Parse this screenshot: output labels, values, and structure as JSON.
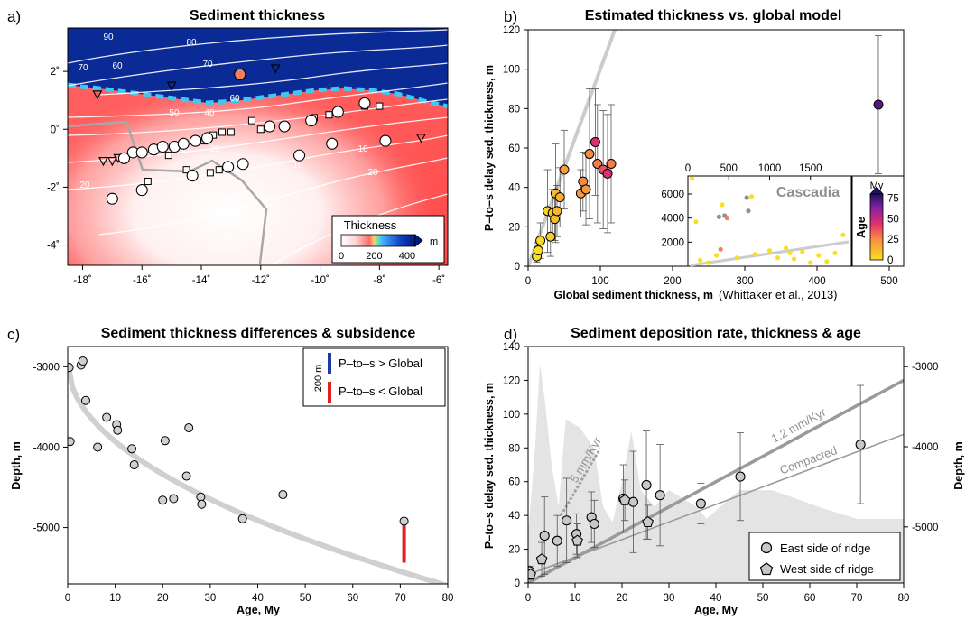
{
  "chart_data": [
    {
      "id": "a",
      "panel_label": "a)",
      "type": "heatmap",
      "title": "Sediment thickness",
      "x_ticks": [
        "-18˚",
        "-16˚",
        "-14˚",
        "-12˚",
        "-10˚",
        "-8˚",
        "-6˚"
      ],
      "y_ticks": [
        "2˚",
        "0˚",
        "-2˚",
        "-4˚"
      ],
      "xlim": [
        -18.5,
        -5.7
      ],
      "ylim": [
        -4.7,
        3.5
      ],
      "colorbar": {
        "label": "Thickness",
        "unit": "m",
        "ticks": [
          "0",
          "200",
          "400"
        ],
        "range": [
          0,
          450
        ]
      },
      "contour_labels": [
        "90",
        "80",
        "70",
        "60",
        "70",
        "50",
        "60",
        "40",
        "30",
        "20",
        "10",
        "20",
        "10",
        "20"
      ],
      "stations_circle": [
        {
          "lon": -17.0,
          "lat": -2.4
        },
        {
          "lon": -16.0,
          "lat": -2.1
        },
        {
          "lon": -16.6,
          "lat": -1.0
        },
        {
          "lon": -16.3,
          "lat": -0.8
        },
        {
          "lon": -16.0,
          "lat": -0.8
        },
        {
          "lon": -15.6,
          "lat": -0.7
        },
        {
          "lon": -15.3,
          "lat": -0.6
        },
        {
          "lon": -14.9,
          "lat": -0.6
        },
        {
          "lon": -14.6,
          "lat": -0.5
        },
        {
          "lon": -14.2,
          "lat": -0.4
        },
        {
          "lon": -13.8,
          "lat": -0.3
        },
        {
          "lon": -14.3,
          "lat": -1.6
        },
        {
          "lon": -13.1,
          "lat": -1.3
        },
        {
          "lon": -12.6,
          "lat": -1.2
        },
        {
          "lon": -11.7,
          "lat": 0.1
        },
        {
          "lon": -11.2,
          "lat": 0.1
        },
        {
          "lon": -10.3,
          "lat": 0.3
        },
        {
          "lon": -9.4,
          "lat": 0.6
        },
        {
          "lon": -8.5,
          "lat": 0.9
        },
        {
          "lon": -10.7,
          "lat": -0.9
        },
        {
          "lon": -9.6,
          "lat": -0.5
        },
        {
          "lon": -7.8,
          "lat": -0.4
        }
      ],
      "station_colored": {
        "lon": -12.7,
        "lat": 1.9,
        "color": "#f08060"
      },
      "stations_square": [
        {
          "lon": -15.8,
          "lat": -1.8
        },
        {
          "lon": -15.1,
          "lat": -0.9
        },
        {
          "lon": -14.5,
          "lat": -1.4
        },
        {
          "lon": -13.7,
          "lat": -1.5
        },
        {
          "lon": -13.4,
          "lat": -1.4
        },
        {
          "lon": -13.9,
          "lat": -0.4
        },
        {
          "lon": -13.6,
          "lat": -0.2
        },
        {
          "lon": -13.3,
          "lat": -0.1
        },
        {
          "lon": -13.0,
          "lat": -0.1
        },
        {
          "lon": -12.0,
          "lat": 0.0
        },
        {
          "lon": -10.2,
          "lat": 0.4
        },
        {
          "lon": -9.7,
          "lat": 0.5
        },
        {
          "lon": -8.5,
          "lat": 0.8
        },
        {
          "lon": -8.0,
          "lat": 0.8
        },
        {
          "lon": -12.3,
          "lat": 0.3
        }
      ],
      "stations_triangle": [
        {
          "lon": -17.5,
          "lat": 1.2
        },
        {
          "lon": -15.0,
          "lat": 1.5
        },
        {
          "lon": -11.5,
          "lat": 2.1
        },
        {
          "lon": -6.6,
          "lat": -0.3
        },
        {
          "lon": -17.3,
          "lat": -1.1
        },
        {
          "lon": -17.0,
          "lat": -1.1
        },
        {
          "lon": -16.8,
          "lat": -1.0
        }
      ]
    },
    {
      "id": "b",
      "panel_label": "b)",
      "type": "scatter",
      "title": "Estimated thickness vs. global model",
      "xlabel": "Global sediment thickness, m",
      "xlabel_note": "(Whittaker et al., 2013)",
      "ylabel": "P–to–s delay sed. thickness, m",
      "xlim": [
        0,
        520
      ],
      "ylim": [
        0,
        120
      ],
      "x_ticks": [
        0,
        100,
        200,
        300,
        400,
        500
      ],
      "y_ticks": [
        0,
        20,
        40,
        60,
        80,
        100,
        120
      ],
      "one_to_one_line": true,
      "points": [
        {
          "x": 12,
          "y": 5,
          "err": 3,
          "age": 0.5
        },
        {
          "x": 14,
          "y": 8,
          "err": 4,
          "age": 1
        },
        {
          "x": 17,
          "y": 13,
          "err": 9,
          "age": 2
        },
        {
          "x": 27,
          "y": 28,
          "err": 21,
          "age": 3.5
        },
        {
          "x": 31,
          "y": 15,
          "err": 10,
          "age": 6
        },
        {
          "x": 34,
          "y": 27,
          "err": 12,
          "age": 8
        },
        {
          "x": 37,
          "y": 24,
          "err": 11,
          "age": 10
        },
        {
          "x": 38,
          "y": 37,
          "err": 25,
          "age": 12
        },
        {
          "x": 40,
          "y": 28,
          "err": 13,
          "age": 13
        },
        {
          "x": 44,
          "y": 35,
          "err": 15,
          "age": 14
        },
        {
          "x": 50,
          "y": 49,
          "err": 20,
          "age": 20
        },
        {
          "x": 73,
          "y": 37,
          "err": 12,
          "age": 22
        },
        {
          "x": 76,
          "y": 43,
          "err": 15,
          "age": 25
        },
        {
          "x": 80,
          "y": 39,
          "err": 18,
          "age": 22
        },
        {
          "x": 85,
          "y": 57,
          "err": 33,
          "age": 25
        },
        {
          "x": 93,
          "y": 63,
          "err": 27,
          "age": 45
        },
        {
          "x": 96,
          "y": 52,
          "err": 30,
          "age": 28
        },
        {
          "x": 104,
          "y": 49,
          "err": 30,
          "age": 37
        },
        {
          "x": 110,
          "y": 47,
          "err": 30,
          "age": 45
        },
        {
          "x": 115,
          "y": 52,
          "err": 30,
          "age": 28
        },
        {
          "x": 485,
          "y": 82,
          "err": 35,
          "age": 71
        }
      ],
      "colorbar": {
        "title": "My",
        "label": "Age",
        "ticks": [
          0,
          25,
          50,
          75
        ],
        "range": [
          0,
          80
        ]
      },
      "inset": {
        "label": "Cascadia",
        "xlim": [
          0,
          2000
        ],
        "ylim": [
          0,
          7500
        ],
        "x_ticks": [
          0,
          500,
          1000,
          1500
        ],
        "y_ticks": [
          2000,
          4000,
          6000
        ],
        "points": [
          {
            "x": 50,
            "y": 7300,
            "c": "#f8e020"
          },
          {
            "x": 100,
            "y": 3700,
            "c": "#f8e020"
          },
          {
            "x": 380,
            "y": 4100,
            "c": "#909090"
          },
          {
            "x": 450,
            "y": 4200,
            "c": "#909090"
          },
          {
            "x": 420,
            "y": 5100,
            "c": "#f8e020"
          },
          {
            "x": 720,
            "y": 5700,
            "c": "#909090"
          },
          {
            "x": 740,
            "y": 4600,
            "c": "#909090"
          },
          {
            "x": 780,
            "y": 5800,
            "c": "#f8e020"
          },
          {
            "x": 480,
            "y": 4000,
            "c": "#f08060"
          },
          {
            "x": 400,
            "y": 1400,
            "c": "#f08060"
          },
          {
            "x": 350,
            "y": 900,
            "c": "#f8e020"
          },
          {
            "x": 600,
            "y": 700,
            "c": "#f8e020"
          },
          {
            "x": 820,
            "y": 1000,
            "c": "#f8e020"
          },
          {
            "x": 1000,
            "y": 1300,
            "c": "#f8e020"
          },
          {
            "x": 1200,
            "y": 1500,
            "c": "#f8e020"
          },
          {
            "x": 1400,
            "y": 1200,
            "c": "#f8e020"
          },
          {
            "x": 1600,
            "y": 900,
            "c": "#f8e020"
          },
          {
            "x": 1800,
            "y": 1100,
            "c": "#f8e020"
          },
          {
            "x": 1900,
            "y": 2600,
            "c": "#f8e020"
          },
          {
            "x": 150,
            "y": 500,
            "c": "#f8e020"
          },
          {
            "x": 250,
            "y": 300,
            "c": "#f8e020"
          },
          {
            "x": 1100,
            "y": 700,
            "c": "#f8e020"
          },
          {
            "x": 1300,
            "y": 600,
            "c": "#f8e020"
          },
          {
            "x": 1700,
            "y": 400,
            "c": "#f8e020"
          },
          {
            "x": 1500,
            "y": 300,
            "c": "#f8e020"
          },
          {
            "x": 1250,
            "y": 1100,
            "c": "#f8e020"
          }
        ]
      }
    },
    {
      "id": "c",
      "panel_label": "c)",
      "type": "scatter",
      "title": "Sediment thickness differences & subsidence",
      "xlabel": "Age, My",
      "ylabel": "Depth, m",
      "xlim": [
        0,
        80
      ],
      "ylim": [
        -5700,
        -2750
      ],
      "x_ticks": [
        0,
        10,
        20,
        30,
        40,
        50,
        60,
        70,
        80
      ],
      "y_ticks": [
        -3000,
        -4000,
        -5000
      ],
      "legend": {
        "scale_label": "200 m",
        "pos_label": "P–to–s > Global",
        "neg_label": "P–to–s < Global",
        "pos_color": "#1f3aa0",
        "neg_color": "#e02020"
      },
      "points": [
        {
          "x": 0.3,
          "y": -3010,
          "d": 0
        },
        {
          "x": 0.5,
          "y": -3930,
          "d": 0
        },
        {
          "x": 2.8,
          "y": -2980,
          "d": 0
        },
        {
          "x": 3.2,
          "y": -2930,
          "d": 0
        },
        {
          "x": 3.8,
          "y": -3420,
          "d": 0
        },
        {
          "x": 6.3,
          "y": -4000,
          "d": 0
        },
        {
          "x": 8.2,
          "y": -3630,
          "d": 0
        },
        {
          "x": 10.3,
          "y": -3720,
          "d": -15
        },
        {
          "x": 10.5,
          "y": -3790,
          "d": -20
        },
        {
          "x": 13.5,
          "y": -4020,
          "d": -15
        },
        {
          "x": 14.0,
          "y": -4220,
          "d": 0
        },
        {
          "x": 20.0,
          "y": -4660,
          "d": -20
        },
        {
          "x": 20.5,
          "y": -3920,
          "d": 0
        },
        {
          "x": 22.3,
          "y": -4640,
          "d": -15
        },
        {
          "x": 25.0,
          "y": -4360,
          "d": 0
        },
        {
          "x": 25.5,
          "y": -3760,
          "d": -10
        },
        {
          "x": 28.0,
          "y": -4620,
          "d": -20
        },
        {
          "x": 28.2,
          "y": -4710,
          "d": -25
        },
        {
          "x": 36.8,
          "y": -4890,
          "d": -20
        },
        {
          "x": 45.3,
          "y": -4590,
          "d": -10
        },
        {
          "x": 70.8,
          "y": -4920,
          "d": -400
        }
      ],
      "subsidence_curve": true
    },
    {
      "id": "d",
      "panel_label": "d)",
      "type": "scatter",
      "title": "Sediment deposition rate, thickness & age",
      "xlabel": "Age, My",
      "ylabel": "P–to–s delay sed. thickness, m",
      "ylabel_right": "Depth, m",
      "xlim": [
        0,
        80
      ],
      "ylim": [
        0,
        140
      ],
      "x_ticks": [
        0,
        10,
        20,
        30,
        40,
        50,
        60,
        70,
        80
      ],
      "y_ticks": [
        0,
        20,
        40,
        60,
        80,
        100,
        120,
        140
      ],
      "y_right_ticks": [
        "-3000",
        "-4000",
        "-5000"
      ],
      "lines": [
        {
          "label": "1.2 mm/Kyr",
          "x": [
            0,
            80
          ],
          "y": [
            0,
            120
          ],
          "width": 3.5,
          "color": "#9a9a9a"
        },
        {
          "label": "Compacted",
          "x": [
            0,
            80
          ],
          "y": [
            5,
            88
          ],
          "width": 1.6,
          "color": "#9a9a9a"
        },
        {
          "label": "5 mm/Kyr",
          "x": [
            7,
            15
          ],
          "y": [
            40,
            78
          ],
          "width": 3,
          "color": "#a0a0a0",
          "dashed": true
        }
      ],
      "bathymetry_shading": [
        [
          0,
          0
        ],
        [
          0,
          30
        ],
        [
          1.5,
          80
        ],
        [
          2.5,
          130
        ],
        [
          3.5,
          110
        ],
        [
          5,
          70
        ],
        [
          6.5,
          45
        ],
        [
          8,
          97
        ],
        [
          11,
          92
        ],
        [
          14,
          80
        ],
        [
          16,
          45
        ],
        [
          18,
          36
        ],
        [
          20,
          60
        ],
        [
          22,
          90
        ],
        [
          24,
          55
        ],
        [
          27,
          45
        ],
        [
          30,
          55
        ],
        [
          36,
          45
        ],
        [
          38,
          38
        ],
        [
          45,
          55
        ],
        [
          52,
          55
        ],
        [
          62,
          45
        ],
        [
          70,
          38
        ],
        [
          80,
          38
        ],
        [
          80,
          0
        ]
      ],
      "legend": {
        "east_label": "East side of ridge",
        "west_label": "West side of ridge"
      },
      "east_points": [
        {
          "x": 0.3,
          "y": 7,
          "err": 3
        },
        {
          "x": 3.5,
          "y": 28,
          "err": 23
        },
        {
          "x": 6.2,
          "y": 25,
          "err": 15
        },
        {
          "x": 8.2,
          "y": 37,
          "err": 25
        },
        {
          "x": 10.3,
          "y": 29,
          "err": 12
        },
        {
          "x": 13.5,
          "y": 39,
          "err": 15
        },
        {
          "x": 14.1,
          "y": 35,
          "err": 14
        },
        {
          "x": 20.3,
          "y": 50,
          "err": 20
        },
        {
          "x": 22.4,
          "y": 48,
          "err": 30
        },
        {
          "x": 25.2,
          "y": 58,
          "err": 32
        },
        {
          "x": 28.1,
          "y": 52,
          "err": 30
        },
        {
          "x": 36.8,
          "y": 47,
          "err": 12
        },
        {
          "x": 45.2,
          "y": 63,
          "err": 26
        },
        {
          "x": 70.8,
          "y": 82,
          "err": 35
        }
      ],
      "west_points": [
        {
          "x": 0.5,
          "y": 5,
          "err": 3
        },
        {
          "x": 2.9,
          "y": 14,
          "err": 10
        },
        {
          "x": 10.5,
          "y": 25,
          "err": 10
        },
        {
          "x": 20.6,
          "y": 49,
          "err": 12
        },
        {
          "x": 25.5,
          "y": 36,
          "err": 10
        }
      ]
    }
  ]
}
